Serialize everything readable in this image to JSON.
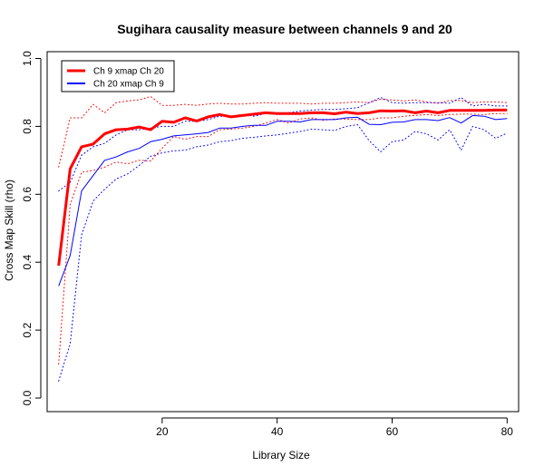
{
  "chart_data": {
    "type": "line",
    "title": "Sugihara causality measure between channels  9 and 20",
    "xlabel": "Library Size",
    "ylabel": "Cross Map Skill (rho)",
    "xlim": [
      0,
      82
    ],
    "ylim": [
      -0.04,
      1.02
    ],
    "xticks": [
      "20",
      "40",
      "60",
      "80"
    ],
    "xtick_values": [
      20,
      40,
      60,
      80
    ],
    "yticks": [
      "0.0",
      "0.2",
      "0.4",
      "0.6",
      "0.8",
      "1.0"
    ],
    "ytick_values": [
      0.0,
      0.2,
      0.4,
      0.6,
      0.8,
      1.0
    ],
    "grid": false,
    "legend_position": "top-left",
    "x": [
      2,
      4,
      6,
      8,
      10,
      12,
      14,
      16,
      18,
      20,
      22,
      24,
      26,
      28,
      30,
      32,
      34,
      36,
      38,
      40,
      42,
      44,
      46,
      48,
      50,
      52,
      54,
      56,
      58,
      60,
      62,
      64,
      66,
      68,
      70,
      72,
      74,
      76,
      78,
      80
    ],
    "series": [
      {
        "name": "Ch 9 xmap Ch 20",
        "color": "#ff0000",
        "style": "solid-thick",
        "values": [
          0.39,
          0.675,
          0.74,
          0.748,
          0.778,
          0.79,
          0.792,
          0.798,
          0.79,
          0.815,
          0.812,
          0.825,
          0.816,
          0.828,
          0.835,
          0.828,
          0.832,
          0.836,
          0.84,
          0.838,
          0.838,
          0.838,
          0.84,
          0.84,
          0.837,
          0.842,
          0.838,
          0.84,
          0.846,
          0.845,
          0.846,
          0.84,
          0.845,
          0.84,
          0.847,
          0.847,
          0.847,
          0.847,
          0.848,
          0.848
        ]
      },
      {
        "name": "Ch 20  xmap Ch 9",
        "color": "#0000ff",
        "style": "solid",
        "values": [
          0.33,
          0.42,
          0.61,
          0.655,
          0.7,
          0.71,
          0.725,
          0.735,
          0.755,
          0.762,
          0.772,
          0.775,
          0.778,
          0.782,
          0.795,
          0.795,
          0.8,
          0.803,
          0.803,
          0.815,
          0.815,
          0.813,
          0.82,
          0.82,
          0.82,
          0.825,
          0.827,
          0.806,
          0.805,
          0.812,
          0.813,
          0.82,
          0.82,
          0.817,
          0.826,
          0.81,
          0.832,
          0.83,
          0.82,
          0.823
        ]
      },
      {
        "name": "",
        "color": "#ff0000",
        "style": "dotted",
        "values": [
          0.68,
          0.825,
          0.825,
          0.865,
          0.84,
          0.87,
          0.875,
          0.878,
          0.888,
          0.862,
          0.862,
          0.865,
          0.862,
          0.866,
          0.868,
          0.866,
          0.866,
          0.868,
          0.87,
          0.868,
          0.868,
          0.868,
          0.866,
          0.868,
          0.868,
          0.87,
          0.872,
          0.87,
          0.88,
          0.878,
          0.875,
          0.878,
          0.872,
          0.868,
          0.876,
          0.876,
          0.87,
          0.872,
          0.872,
          0.87
        ]
      },
      {
        "name": "",
        "color": "#ff0000",
        "style": "dotted",
        "values": [
          0.1,
          0.57,
          0.665,
          0.67,
          0.68,
          0.695,
          0.69,
          0.7,
          0.698,
          0.735,
          0.77,
          0.762,
          0.77,
          0.77,
          0.79,
          0.792,
          0.795,
          0.8,
          0.81,
          0.82,
          0.81,
          0.822,
          0.825,
          0.818,
          0.822,
          0.822,
          0.82,
          0.82,
          0.825,
          0.825,
          0.83,
          0.832,
          0.835,
          0.832,
          0.835,
          0.836,
          0.836,
          0.835,
          0.838,
          0.838
        ]
      },
      {
        "name": "",
        "color": "#0000ff",
        "style": "dotted",
        "values": [
          0.61,
          0.635,
          0.715,
          0.74,
          0.75,
          0.775,
          0.79,
          0.79,
          0.795,
          0.8,
          0.8,
          0.815,
          0.815,
          0.82,
          0.83,
          0.83,
          0.835,
          0.83,
          0.838,
          0.84,
          0.84,
          0.845,
          0.848,
          0.85,
          0.85,
          0.852,
          0.855,
          0.87,
          0.885,
          0.87,
          0.868,
          0.87,
          0.87,
          0.87,
          0.868,
          0.885,
          0.86,
          0.865,
          0.86,
          0.86
        ]
      },
      {
        "name": "",
        "color": "#0000ff",
        "style": "dotted",
        "values": [
          0.05,
          0.16,
          0.48,
          0.58,
          0.615,
          0.645,
          0.66,
          0.685,
          0.712,
          0.722,
          0.728,
          0.73,
          0.74,
          0.745,
          0.755,
          0.758,
          0.765,
          0.768,
          0.772,
          0.775,
          0.78,
          0.785,
          0.792,
          0.79,
          0.788,
          0.8,
          0.805,
          0.758,
          0.725,
          0.755,
          0.76,
          0.785,
          0.778,
          0.76,
          0.79,
          0.73,
          0.8,
          0.79,
          0.765,
          0.78
        ]
      }
    ]
  }
}
